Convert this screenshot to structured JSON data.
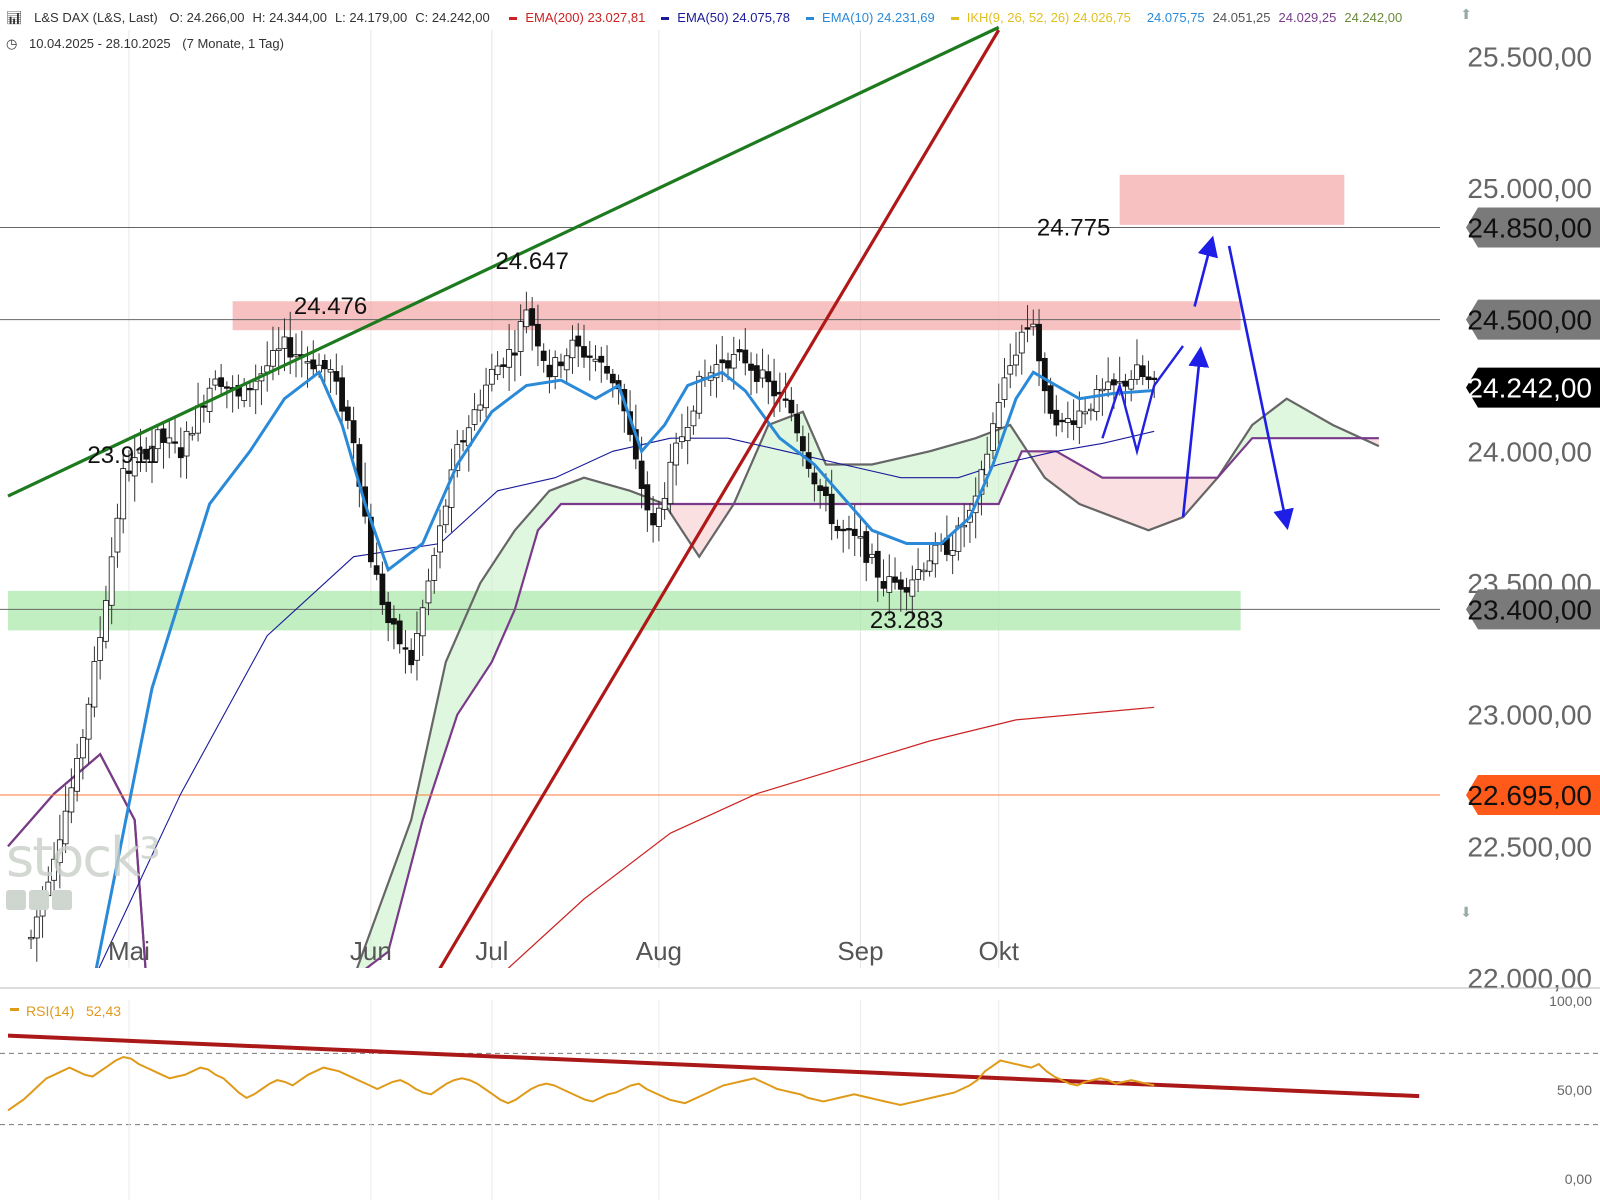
{
  "header": {
    "instrument": "L&S DAX (L&S, Last)",
    "ohlc": [
      {
        "label": "O:",
        "value": "24.266,00"
      },
      {
        "label": "H:",
        "value": "24.344,00"
      },
      {
        "label": "L:",
        "value": "24.179,00"
      },
      {
        "label": "C:",
        "value": "24.242,00"
      }
    ],
    "legend": [
      {
        "name": "EMA(200)",
        "value": "23.027,81",
        "color": "#cc2222"
      },
      {
        "name": "EMA(50)",
        "value": "24.075,78",
        "color": "#1a1a9a"
      },
      {
        "name": "EMA(10)",
        "value": "24.231,69",
        "color": "#2a8ad8"
      },
      {
        "name": "IKH(9, 26, 52, 26)",
        "value": "24.026,75",
        "color": "#e0c020"
      }
    ],
    "ikh_extra": [
      {
        "value": "24.075,75",
        "color": "#2a8ad8"
      },
      {
        "value": "24.051,25",
        "color": "#555555"
      },
      {
        "value": "24.029,25",
        "color": "#7a3a8a"
      },
      {
        "value": "24.242,00",
        "color": "#6a8a3a"
      }
    ],
    "range": "10.04.2025 - 28.10.2025",
    "period": "(7 Monate, 1 Tag)"
  },
  "watermark": "stock³",
  "chart_data": {
    "type": "candlestick",
    "y_axis": {
      "min": 22000,
      "max": 25600,
      "ticks": [
        25500,
        25000,
        24500,
        24000,
        23500,
        23000,
        22500,
        22000
      ],
      "tick_labels": [
        "25.500,00",
        "25.000,00",
        "24.500,00",
        "24.000,00",
        "23.500,00",
        "23.000,00",
        "22.500,00",
        "22.000,00"
      ]
    },
    "x_axis": {
      "labels": [
        "Mai",
        "Jun",
        "Jul",
        "Aug",
        "Sep",
        "Okt"
      ],
      "label_days": [
        21,
        63,
        84,
        113,
        148,
        172
      ],
      "last_day": 199
    },
    "price_tags": [
      {
        "value": 24850,
        "label": "24.850,00",
        "bg": "#7a7a7a",
        "fg": "#111111"
      },
      {
        "value": 24500,
        "label": "24.500,00",
        "bg": "#7a7a7a",
        "fg": "#111111"
      },
      {
        "value": 24242,
        "label": "24.242,00",
        "bg": "#000000",
        "fg": "#ffffff"
      },
      {
        "value": 23400,
        "label": "23.400,00",
        "bg": "#7a7a7a",
        "fg": "#111111"
      },
      {
        "value": 22695,
        "label": "22.695,00",
        "bg": "#ff5a1a",
        "fg": "#111111"
      }
    ],
    "annotations": [
      {
        "text": "23.911",
        "day": 20,
        "price": 23911
      },
      {
        "text": "24.476",
        "day": 56,
        "price": 24476
      },
      {
        "text": "24.647",
        "day": 91,
        "price": 24647
      },
      {
        "text": "23.283",
        "day": 156,
        "price": 23283
      },
      {
        "text": "24.775",
        "day": 185,
        "price": 24775
      }
    ],
    "horizontal_lines": [
      24850,
      24500,
      23400,
      22695
    ],
    "zones": [
      {
        "type": "resistance",
        "from": 24460,
        "to": 24570,
        "start_day": 39,
        "end_day": 214,
        "color": "#f4a6a6"
      },
      {
        "type": "resistance",
        "from": 24860,
        "to": 25050,
        "start_day": 193,
        "end_day": 232,
        "color": "#f4a6a6"
      },
      {
        "type": "support",
        "from": 23320,
        "to": 23470,
        "start_day": 0,
        "end_day": 214,
        "color": "#a6e8a6"
      }
    ],
    "candles_keypoints": [
      [
        4,
        22150
      ],
      [
        12,
        22800
      ],
      [
        16,
        23300
      ],
      [
        20,
        23911
      ],
      [
        26,
        24050
      ],
      [
        30,
        24000
      ],
      [
        36,
        24300
      ],
      [
        40,
        24200
      ],
      [
        44,
        24300
      ],
      [
        48,
        24400
      ],
      [
        52,
        24350
      ],
      [
        56,
        24300
      ],
      [
        60,
        24050
      ],
      [
        63,
        23600
      ],
      [
        66,
        23350
      ],
      [
        70,
        23200
      ],
      [
        74,
        23600
      ],
      [
        78,
        24000
      ],
      [
        84,
        24300
      ],
      [
        88,
        24400
      ],
      [
        90,
        24550
      ],
      [
        94,
        24300
      ],
      [
        98,
        24400
      ],
      [
        102,
        24350
      ],
      [
        106,
        24250
      ],
      [
        109,
        23950
      ],
      [
        112,
        23700
      ],
      [
        116,
        24000
      ],
      [
        120,
        24250
      ],
      [
        124,
        24350
      ],
      [
        128,
        24350
      ],
      [
        132,
        24250
      ],
      [
        136,
        24150
      ],
      [
        140,
        23900
      ],
      [
        144,
        23700
      ],
      [
        148,
        23650
      ],
      [
        152,
        23500
      ],
      [
        156,
        23500
      ],
      [
        160,
        23600
      ],
      [
        164,
        23650
      ],
      [
        168,
        23800
      ],
      [
        172,
        24200
      ],
      [
        176,
        24450
      ],
      [
        178,
        24500
      ],
      [
        180,
        24200
      ],
      [
        183,
        24100
      ],
      [
        186,
        24150
      ],
      [
        190,
        24220
      ],
      [
        193,
        24250
      ],
      [
        196,
        24300
      ],
      [
        199,
        24242
      ]
    ],
    "ema10_keypoints": [
      [
        15,
        22000
      ],
      [
        25,
        23100
      ],
      [
        35,
        23800
      ],
      [
        42,
        24000
      ],
      [
        48,
        24200
      ],
      [
        54,
        24300
      ],
      [
        58,
        24100
      ],
      [
        62,
        23800
      ],
      [
        66,
        23550
      ],
      [
        72,
        23650
      ],
      [
        78,
        23950
      ],
      [
        84,
        24150
      ],
      [
        90,
        24250
      ],
      [
        96,
        24270
      ],
      [
        102,
        24200
      ],
      [
        106,
        24250
      ],
      [
        110,
        24000
      ],
      [
        114,
        24100
      ],
      [
        118,
        24250
      ],
      [
        124,
        24300
      ],
      [
        128,
        24230
      ],
      [
        134,
        24050
      ],
      [
        140,
        23950
      ],
      [
        144,
        23850
      ],
      [
        150,
        23700
      ],
      [
        156,
        23650
      ],
      [
        162,
        23650
      ],
      [
        167,
        23750
      ],
      [
        171,
        23950
      ],
      [
        175,
        24200
      ],
      [
        178,
        24300
      ],
      [
        182,
        24250
      ],
      [
        186,
        24200
      ],
      [
        192,
        24220
      ],
      [
        199,
        24231
      ]
    ],
    "ema50_keypoints": [
      [
        15,
        22000
      ],
      [
        30,
        22700
      ],
      [
        45,
        23300
      ],
      [
        60,
        23600
      ],
      [
        75,
        23650
      ],
      [
        85,
        23850
      ],
      [
        95,
        23900
      ],
      [
        105,
        24000
      ],
      [
        115,
        24050
      ],
      [
        125,
        24050
      ],
      [
        135,
        24000
      ],
      [
        145,
        23950
      ],
      [
        155,
        23900
      ],
      [
        165,
        23900
      ],
      [
        172,
        23950
      ],
      [
        182,
        24000
      ],
      [
        190,
        24030
      ],
      [
        199,
        24076
      ]
    ],
    "ema200_keypoints": [
      [
        85,
        22000
      ],
      [
        100,
        22300
      ],
      [
        115,
        22550
      ],
      [
        130,
        22700
      ],
      [
        145,
        22800
      ],
      [
        160,
        22900
      ],
      [
        175,
        22980
      ],
      [
        199,
        23028
      ]
    ],
    "ikh_span_a": [
      [
        0,
        22500
      ],
      [
        8,
        22700
      ],
      [
        16,
        22850
      ],
      [
        22,
        22600
      ],
      [
        24,
        22000
      ],
      [
        60,
        22000
      ],
      [
        70,
        22600
      ],
      [
        76,
        23200
      ],
      [
        82,
        23500
      ],
      [
        88,
        23700
      ],
      [
        94,
        23850
      ],
      [
        100,
        23900
      ],
      [
        108,
        23850
      ],
      [
        114,
        23800
      ],
      [
        120,
        23600
      ],
      [
        126,
        23800
      ],
      [
        132,
        24100
      ],
      [
        138,
        24150
      ],
      [
        142,
        23950
      ],
      [
        150,
        23950
      ],
      [
        160,
        24000
      ],
      [
        168,
        24050
      ],
      [
        174,
        24100
      ],
      [
        180,
        23900
      ],
      [
        186,
        23800
      ],
      [
        192,
        23750
      ],
      [
        198,
        23700
      ],
      [
        204,
        23750
      ],
      [
        210,
        23900
      ],
      [
        216,
        24100
      ],
      [
        222,
        24200
      ],
      [
        230,
        24100
      ],
      [
        238,
        24020
      ]
    ],
    "ikh_span_b": [
      [
        0,
        22500
      ],
      [
        8,
        22700
      ],
      [
        16,
        22850
      ],
      [
        22,
        22600
      ],
      [
        24,
        22000
      ],
      [
        60,
        22000
      ],
      [
        66,
        22100
      ],
      [
        72,
        22600
      ],
      [
        78,
        23000
      ],
      [
        84,
        23200
      ],
      [
        88,
        23400
      ],
      [
        92,
        23700
      ],
      [
        96,
        23800
      ],
      [
        100,
        23800
      ],
      [
        120,
        23800
      ],
      [
        140,
        23800
      ],
      [
        160,
        23800
      ],
      [
        168,
        23800
      ],
      [
        172,
        23800
      ],
      [
        176,
        24000
      ],
      [
        182,
        24000
      ],
      [
        190,
        23900
      ],
      [
        200,
        23900
      ],
      [
        210,
        23900
      ],
      [
        216,
        24050
      ],
      [
        230,
        24050
      ],
      [
        238,
        24050
      ]
    ],
    "trendlines": [
      {
        "color": "#1e7a1e",
        "p1": [
          0,
          23830
        ],
        "p2": [
          172,
          25610
        ]
      },
      {
        "color": "#b01818",
        "p1": [
          74,
          22000
        ],
        "p2": [
          172,
          25600
        ]
      }
    ],
    "forecast_path": [
      [
        190,
        24050
      ],
      [
        193,
        24250
      ],
      [
        196,
        24000
      ],
      [
        199,
        24250
      ],
      [
        204,
        24400
      ]
    ],
    "forecast_arrows": [
      {
        "from": [
          204,
          23750
        ],
        "to": [
          207,
          24380
        ]
      },
      {
        "from": [
          206,
          24550
        ],
        "to": [
          209,
          24800
        ]
      },
      {
        "from": [
          212,
          24780
        ],
        "to": [
          222,
          23720
        ]
      }
    ],
    "rsi": {
      "label": "RSI(14)",
      "value": "52,43",
      "value_num": 52.43,
      "y_ticks": [
        "100,00",
        "50,00",
        "0,00"
      ],
      "levels": [
        70,
        30
      ],
      "trendline": {
        "p1": [
          0,
          80
        ],
        "p2": [
          245,
          46
        ]
      },
      "values": [
        38,
        41,
        44,
        48,
        52,
        56,
        58,
        60,
        62,
        60,
        58,
        57,
        60,
        63,
        66,
        68,
        67,
        64,
        62,
        60,
        58,
        56,
        57,
        58,
        60,
        62,
        61,
        58,
        56,
        52,
        48,
        45,
        47,
        50,
        53,
        55,
        54,
        52,
        55,
        58,
        60,
        62,
        61,
        60,
        58,
        56,
        54,
        52,
        50,
        52,
        54,
        55,
        53,
        50,
        48,
        47,
        50,
        53,
        55,
        56,
        55,
        53,
        50,
        47,
        44,
        42,
        44,
        47,
        50,
        52,
        53,
        52,
        50,
        48,
        46,
        44,
        43,
        45,
        47,
        48,
        50,
        52,
        53,
        50,
        48,
        46,
        44,
        43,
        42,
        44,
        46,
        48,
        50,
        52,
        53,
        54,
        55,
        56,
        54,
        52,
        50,
        49,
        48,
        47,
        45,
        44,
        43,
        44,
        45,
        46,
        47,
        46,
        45,
        44,
        43,
        42,
        41,
        42,
        43,
        44,
        45,
        46,
        47,
        48,
        50,
        52,
        55,
        60,
        63,
        66,
        65,
        64,
        63,
        62,
        64,
        60,
        57,
        55,
        53,
        52,
        54,
        55,
        56,
        55,
        53,
        54,
        55,
        54,
        53,
        52
      ]
    }
  }
}
